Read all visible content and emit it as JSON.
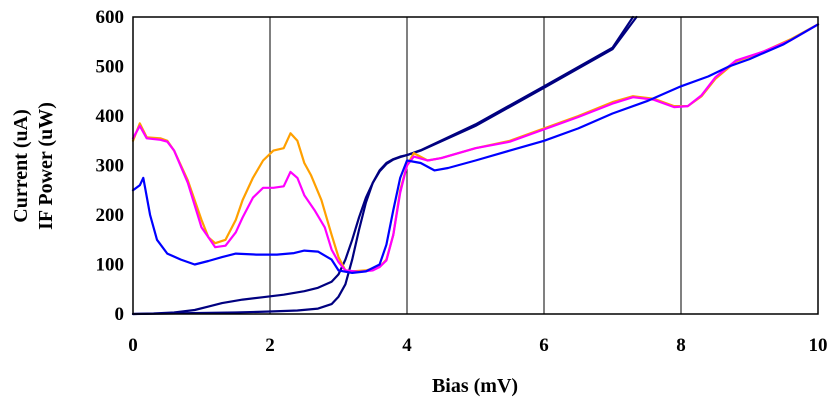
{
  "chart_data": {
    "type": "line",
    "xlabel": "Bias (mV)",
    "ylabel_lines": [
      "Current (uA)",
      "IF Power (uW)"
    ],
    "xlim": [
      0,
      10
    ],
    "ylim": [
      0,
      600
    ],
    "x_ticks": [
      0,
      2,
      4,
      6,
      8,
      10
    ],
    "y_ticks": [
      0,
      100,
      200,
      300,
      400,
      500,
      600
    ],
    "x_tick_labels": [
      "0",
      "2",
      "4",
      "6",
      "8",
      "10"
    ],
    "y_tick_labels": [
      "0",
      "100",
      "200",
      "300",
      "400",
      "500",
      "600"
    ],
    "grid": "vertical",
    "legend": "none",
    "series": [
      {
        "color": "#000080",
        "points": [
          [
            0,
            0
          ],
          [
            0.5,
            1
          ],
          [
            1,
            2
          ],
          [
            1.5,
            3
          ],
          [
            2,
            5
          ],
          [
            2.4,
            7
          ],
          [
            2.7,
            11
          ],
          [
            2.9,
            20
          ],
          [
            3.0,
            35
          ],
          [
            3.1,
            60
          ],
          [
            3.2,
            110
          ],
          [
            3.3,
            170
          ],
          [
            3.4,
            225
          ],
          [
            3.5,
            265
          ],
          [
            3.6,
            290
          ],
          [
            3.7,
            305
          ],
          [
            3.8,
            313
          ],
          [
            3.9,
            318
          ],
          [
            4.0,
            321
          ],
          [
            4.2,
            330
          ],
          [
            5,
            380
          ],
          [
            6,
            457
          ],
          [
            7,
            535
          ],
          [
            7.35,
            600
          ]
        ]
      },
      {
        "color": "#000080",
        "points": [
          [
            0,
            0
          ],
          [
            0.3,
            1
          ],
          [
            0.6,
            3
          ],
          [
            0.9,
            8
          ],
          [
            1.1,
            15
          ],
          [
            1.3,
            22
          ],
          [
            1.6,
            29
          ],
          [
            1.9,
            34
          ],
          [
            2.2,
            39
          ],
          [
            2.5,
            46
          ],
          [
            2.7,
            53
          ],
          [
            2.9,
            65
          ],
          [
            3.0,
            80
          ],
          [
            3.1,
            110
          ],
          [
            3.2,
            150
          ],
          [
            3.3,
            195
          ],
          [
            3.4,
            235
          ],
          [
            3.5,
            265
          ],
          [
            3.6,
            288
          ],
          [
            3.7,
            303
          ],
          [
            3.8,
            312
          ],
          [
            3.9,
            317
          ],
          [
            4.0,
            321
          ],
          [
            4.2,
            331
          ],
          [
            5,
            383
          ],
          [
            6,
            460
          ],
          [
            7,
            538
          ],
          [
            7.3,
            600
          ]
        ]
      },
      {
        "color": "#ffa000",
        "points": [
          [
            0,
            350
          ],
          [
            0.1,
            385
          ],
          [
            0.2,
            357
          ],
          [
            0.4,
            355
          ],
          [
            0.5,
            350
          ],
          [
            0.6,
            330
          ],
          [
            0.8,
            270
          ],
          [
            1.0,
            190
          ],
          [
            1.1,
            155
          ],
          [
            1.2,
            143
          ],
          [
            1.35,
            150
          ],
          [
            1.5,
            190
          ],
          [
            1.6,
            230
          ],
          [
            1.75,
            275
          ],
          [
            1.9,
            310
          ],
          [
            2.05,
            330
          ],
          [
            2.2,
            335
          ],
          [
            2.3,
            365
          ],
          [
            2.4,
            350
          ],
          [
            2.5,
            305
          ],
          [
            2.6,
            280
          ],
          [
            2.75,
            230
          ],
          [
            2.9,
            160
          ],
          [
            3.0,
            115
          ],
          [
            3.1,
            88
          ],
          [
            3.2,
            86
          ],
          [
            3.4,
            88
          ],
          [
            3.6,
            95
          ],
          [
            3.7,
            110
          ],
          [
            3.8,
            160
          ],
          [
            3.9,
            250
          ],
          [
            4.0,
            300
          ],
          [
            4.1,
            325
          ],
          [
            4.3,
            310
          ],
          [
            4.5,
            315
          ],
          [
            5,
            335
          ],
          [
            5.5,
            350
          ],
          [
            6,
            375
          ],
          [
            6.5,
            400
          ],
          [
            7,
            428
          ],
          [
            7.3,
            440
          ],
          [
            7.6,
            435
          ],
          [
            7.9,
            420
          ],
          [
            8.1,
            420
          ],
          [
            8.3,
            440
          ],
          [
            8.5,
            475
          ],
          [
            8.8,
            510
          ],
          [
            9.2,
            530
          ],
          [
            9.6,
            555
          ],
          [
            10,
            585
          ]
        ]
      },
      {
        "color": "#ff00ff",
        "points": [
          [
            0,
            355
          ],
          [
            0.1,
            380
          ],
          [
            0.2,
            355
          ],
          [
            0.4,
            352
          ],
          [
            0.5,
            348
          ],
          [
            0.6,
            330
          ],
          [
            0.8,
            265
          ],
          [
            1.0,
            175
          ],
          [
            1.1,
            155
          ],
          [
            1.2,
            135
          ],
          [
            1.35,
            138
          ],
          [
            1.5,
            165
          ],
          [
            1.6,
            195
          ],
          [
            1.75,
            235
          ],
          [
            1.9,
            255
          ],
          [
            2.05,
            255
          ],
          [
            2.2,
            258
          ],
          [
            2.3,
            287
          ],
          [
            2.4,
            275
          ],
          [
            2.5,
            240
          ],
          [
            2.65,
            210
          ],
          [
            2.8,
            175
          ],
          [
            2.9,
            130
          ],
          [
            3.0,
            105
          ],
          [
            3.1,
            88
          ],
          [
            3.3,
            85
          ],
          [
            3.5,
            88
          ],
          [
            3.6,
            95
          ],
          [
            3.7,
            108
          ],
          [
            3.8,
            160
          ],
          [
            3.9,
            245
          ],
          [
            4.0,
            300
          ],
          [
            4.1,
            318
          ],
          [
            4.3,
            310
          ],
          [
            4.5,
            315
          ],
          [
            5,
            335
          ],
          [
            5.5,
            348
          ],
          [
            6,
            373
          ],
          [
            6.5,
            398
          ],
          [
            7,
            425
          ],
          [
            7.3,
            438
          ],
          [
            7.6,
            433
          ],
          [
            7.9,
            418
          ],
          [
            8.1,
            420
          ],
          [
            8.3,
            442
          ],
          [
            8.5,
            478
          ],
          [
            8.8,
            512
          ],
          [
            9.2,
            530
          ],
          [
            9.6,
            553
          ],
          [
            10,
            585
          ]
        ]
      },
      {
        "color": "#0000ff",
        "points": [
          [
            0,
            250
          ],
          [
            0.1,
            260
          ],
          [
            0.15,
            275
          ],
          [
            0.25,
            200
          ],
          [
            0.35,
            150
          ],
          [
            0.5,
            122
          ],
          [
            0.7,
            110
          ],
          [
            0.9,
            100
          ],
          [
            1.1,
            107
          ],
          [
            1.3,
            115
          ],
          [
            1.5,
            122
          ],
          [
            1.8,
            120
          ],
          [
            2.1,
            120
          ],
          [
            2.35,
            123
          ],
          [
            2.5,
            128
          ],
          [
            2.7,
            126
          ],
          [
            2.9,
            110
          ],
          [
            3.0,
            88
          ],
          [
            3.2,
            83
          ],
          [
            3.4,
            86
          ],
          [
            3.6,
            100
          ],
          [
            3.7,
            140
          ],
          [
            3.8,
            210
          ],
          [
            3.9,
            275
          ],
          [
            4.0,
            310
          ],
          [
            4.2,
            305
          ],
          [
            4.4,
            290
          ],
          [
            4.6,
            295
          ],
          [
            5,
            310
          ],
          [
            5.5,
            330
          ],
          [
            6,
            350
          ],
          [
            6.5,
            375
          ],
          [
            7,
            405
          ],
          [
            7.5,
            430
          ],
          [
            8,
            460
          ],
          [
            8.4,
            480
          ],
          [
            8.7,
            500
          ],
          [
            9,
            515
          ],
          [
            9.5,
            545
          ],
          [
            10,
            585
          ]
        ]
      }
    ]
  }
}
